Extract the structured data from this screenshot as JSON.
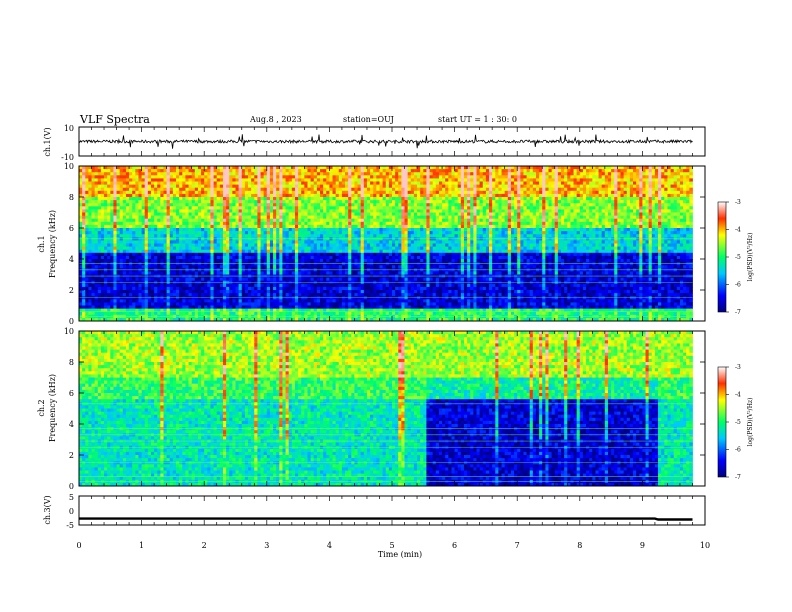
{
  "header": {
    "title": "VLF Spectra",
    "date": "Aug.8 , 2023",
    "station": "station=OUJ",
    "start": "start UT = 1 : 30: 0"
  },
  "chart_data": [
    {
      "type": "line",
      "panel": "ch1-waveform",
      "ylabel": "ch.1(V)",
      "ylim": [
        -10,
        10
      ],
      "yticks": [
        "10",
        "-10"
      ],
      "xlim": [
        0,
        10
      ],
      "description_values": {
        "baseline": 0,
        "typical_spike_amplitude": 5
      }
    },
    {
      "type": "heatmap",
      "panel": "ch1-spectrogram",
      "ylabel_top": "ch.1",
      "ylabel": "Frequency (kHz)",
      "yticks": [
        "0",
        "2",
        "4",
        "6",
        "8",
        "10"
      ],
      "ylim": [
        0,
        10
      ],
      "xlim": [
        0,
        9.8
      ],
      "colorbar": {
        "label": "log(PSD)(V²/Hz)",
        "ticks": [
          "-3",
          "-4",
          "-5",
          "-6",
          "-7"
        ],
        "range": [
          -7,
          -3
        ]
      },
      "levels": [
        {
          "from_khz": 0,
          "to_khz": 0.8,
          "log_psd": -5
        },
        {
          "from_khz": 0.8,
          "to_khz": 4.5,
          "log_psd": -6.6
        },
        {
          "from_khz": 4.5,
          "to_khz": 6,
          "log_psd": -5.5
        },
        {
          "from_khz": 6,
          "to_khz": 8,
          "log_psd": -4.6
        },
        {
          "from_khz": 8,
          "to_khz": 10,
          "log_psd": -4.0
        }
      ]
    },
    {
      "type": "heatmap",
      "panel": "ch2-spectrogram",
      "ylabel_top": "ch.2",
      "ylabel": "Frequency (kHz)",
      "yticks": [
        "0",
        "2",
        "4",
        "6",
        "8",
        "10"
      ],
      "ylim": [
        0,
        10
      ],
      "xlim": [
        0,
        9.8
      ],
      "colorbar": {
        "label": "log(PSD)(V²/Hz)",
        "ticks": [
          "-3",
          "-4",
          "-5",
          "-6",
          "-7"
        ],
        "range": [
          -7,
          -3
        ]
      },
      "segments": [
        {
          "from_min": 0,
          "to_min": 5.55,
          "quiet_level": -5.3
        },
        {
          "from_min": 5.55,
          "to_min": 9.25,
          "quiet_level": -6.6
        },
        {
          "from_min": 9.25,
          "to_min": 9.8,
          "quiet_level": -5.3
        }
      ]
    },
    {
      "type": "line",
      "panel": "ch3-level",
      "ylabel": "ch.3(V)",
      "ylim": [
        -5,
        5
      ],
      "yticks": [
        "5",
        "0",
        "-5"
      ],
      "xlim": [
        0,
        10
      ],
      "x": [
        0,
        9.2,
        9.25,
        9.8
      ],
      "y": [
        -2.8,
        -2.8,
        -3.1,
        -3.1
      ]
    }
  ],
  "xaxis": {
    "label": "Time (min)",
    "ticks": [
      "0",
      "1",
      "2",
      "3",
      "4",
      "5",
      "6",
      "7",
      "8",
      "9",
      "10"
    ],
    "range": [
      0,
      10
    ]
  }
}
